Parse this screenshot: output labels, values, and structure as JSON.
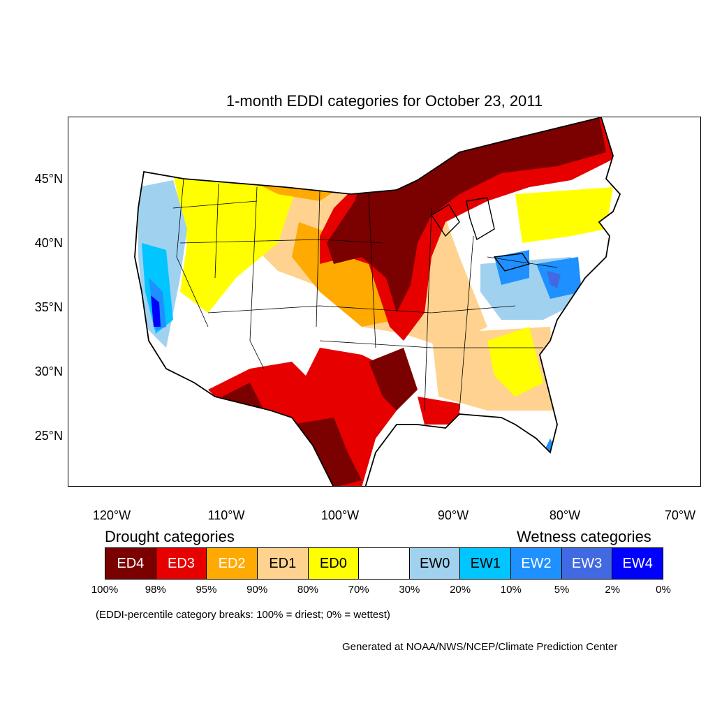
{
  "title": "1-month EDDI categories for October 23, 2011",
  "map": {
    "projection": "lat-lon (conus)",
    "lat_ticks": [
      "45°N",
      "40°N",
      "35°N",
      "30°N",
      "25°N"
    ],
    "lon_ticks": [
      "120°W",
      "110°W",
      "100°W",
      "90°W",
      "80°W",
      "70°W"
    ],
    "colors": {
      "ED4": "#7b0000",
      "ED3": "#e60000",
      "ED2": "#ffaa00",
      "ED1": "#ffd38f",
      "ED0": "#ffff00",
      "neutral": "#ffffff",
      "EW0": "#a0d2f0",
      "EW1": "#00c5ff",
      "EW2": "#1e90ff",
      "EW3": "#4169e1",
      "EW4": "#0000ff"
    }
  },
  "legend": {
    "drought_heading": "Drought categories",
    "wetness_heading": "Wetness categories",
    "categories": [
      {
        "label": "ED4",
        "color": "#7b0000",
        "text_color": "#ffffff"
      },
      {
        "label": "ED3",
        "color": "#e60000",
        "text_color": "#ffffff"
      },
      {
        "label": "ED2",
        "color": "#ffaa00",
        "text_color": "#ffffff"
      },
      {
        "label": "ED1",
        "color": "#ffd38f",
        "text_color": "#000000"
      },
      {
        "label": "ED0",
        "color": "#ffff00",
        "text_color": "#000000"
      },
      {
        "label": "",
        "color": "#ffffff",
        "text_color": "#000000"
      },
      {
        "label": "EW0",
        "color": "#a0d2f0",
        "text_color": "#000000"
      },
      {
        "label": "EW1",
        "color": "#00c5ff",
        "text_color": "#000000"
      },
      {
        "label": "EW2",
        "color": "#1e90ff",
        "text_color": "#ffffff"
      },
      {
        "label": "EW3",
        "color": "#4169e1",
        "text_color": "#ffffff"
      },
      {
        "label": "EW4",
        "color": "#0000ff",
        "text_color": "#ffffff"
      }
    ],
    "breaks": [
      "100%",
      "98%",
      "95%",
      "90%",
      "80%",
      "70%",
      "30%",
      "20%",
      "10%",
      "5%",
      "2%",
      "0%"
    ]
  },
  "note": "(EDDI-percentile category breaks: 100% = driest; 0% = wettest)",
  "credit": "Generated at NOAA/NWS/NCEP/Climate Prediction Center"
}
